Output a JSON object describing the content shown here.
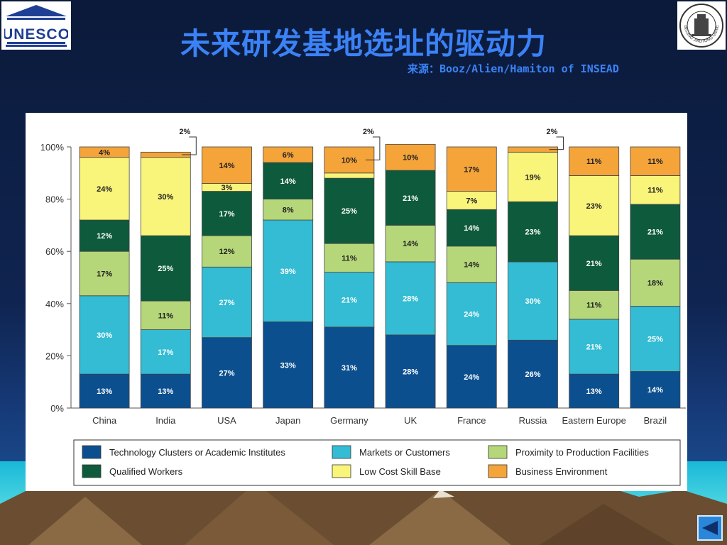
{
  "slide": {
    "title": "未来研发基地选址的驱动力",
    "source": "来源：Booz/Alien/Hamiton of INSEAD",
    "logo_left_text": "UNESCO",
    "logo_right_text": "BEIJING JIAOTONG UNIVERSITY",
    "nav_icon": "back-arrow-icon"
  },
  "chart_data": {
    "type": "bar",
    "stacked": true,
    "ylim": [
      0,
      100
    ],
    "yticks": [
      "0%",
      "20%",
      "40%",
      "60%",
      "80%",
      "100%"
    ],
    "categories": [
      "China",
      "India",
      "USA",
      "Japan",
      "Germany",
      "UK",
      "France",
      "Russia",
      "Eastern Europe",
      "Brazil"
    ],
    "series": [
      {
        "name": "Technology Clusters or Academic Institutes",
        "color": "#0b4f8f",
        "values": [
          13,
          13,
          27,
          33,
          31,
          28,
          24,
          26,
          13,
          14
        ]
      },
      {
        "name": "Markets or Customers",
        "color": "#33bcd3",
        "values": [
          30,
          17,
          27,
          39,
          21,
          28,
          24,
          30,
          21,
          25
        ]
      },
      {
        "name": "Proximity to Production Facilities",
        "color": "#b5d77a",
        "values": [
          17,
          11,
          12,
          8,
          11,
          14,
          14,
          0,
          11,
          18
        ]
      },
      {
        "name": "Qualified Workers",
        "color": "#0d5a3c",
        "values": [
          12,
          25,
          17,
          14,
          25,
          21,
          14,
          23,
          21,
          21
        ]
      },
      {
        "name": "Low Cost Skill Base",
        "color": "#f9f47a",
        "values": [
          24,
          30,
          3,
          0,
          2,
          0,
          7,
          19,
          23,
          11
        ]
      },
      {
        "name": "Business Environment",
        "color": "#f5a43a",
        "values": [
          4,
          2,
          14,
          6,
          10,
          10,
          17,
          2,
          11,
          11
        ]
      }
    ],
    "labels_shown": [
      [
        "13%",
        "30%",
        "17%",
        "12%",
        "24%",
        "4%"
      ],
      [
        "13%",
        "17%",
        "11%",
        "25%",
        "30%",
        ""
      ],
      [
        "27%",
        "27%",
        "12%",
        "17%",
        "3%",
        "14%"
      ],
      [
        "33%",
        "39%",
        "8%",
        "14%",
        "",
        "6%"
      ],
      [
        "31%",
        "21%",
        "11%",
        "25%",
        "",
        "10%"
      ],
      [
        "28%",
        "28%",
        "14%",
        "21%",
        "",
        "10%"
      ],
      [
        "24%",
        "24%",
        "14%",
        "14%",
        "7%",
        "17%"
      ],
      [
        "26%",
        "30%",
        "",
        "23%",
        "19%",
        ""
      ],
      [
        "13%",
        "21%",
        "11%",
        "21%",
        "23%",
        "11%"
      ],
      [
        "14%",
        "25%",
        "18%",
        "21%",
        "11%",
        "11%"
      ]
    ],
    "callouts": [
      {
        "category": "India",
        "text": "2%"
      },
      {
        "category": "Germany",
        "text": "2%"
      },
      {
        "category": "Russia",
        "text": "2%"
      }
    ],
    "legend_position": "bottom"
  }
}
